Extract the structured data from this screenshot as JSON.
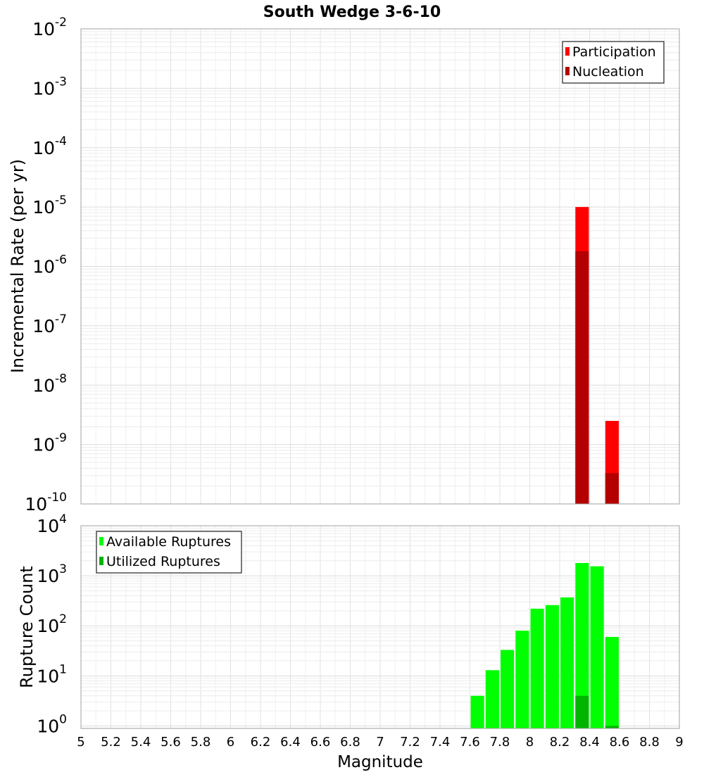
{
  "chart_data": [
    {
      "type": "bar",
      "title": "South Wedge 3-6-10",
      "xlabel": "",
      "ylabel": "Incremental Rate (per yr)",
      "yscale": "log",
      "xlim": [
        5,
        9
      ],
      "ylim_exp": [
        -10,
        -2
      ],
      "ytick_exponents": [
        "-10",
        "-9",
        "-8",
        "-7",
        "-6",
        "-5",
        "-4",
        "-3",
        "-2"
      ],
      "grid": true,
      "legend_position": "top-right",
      "bar_width": 0.09,
      "series": [
        {
          "name": "Participation",
          "color": "#ff0000",
          "x": [
            8.35,
            8.55
          ],
          "values": [
            1e-05,
            2.5e-09
          ]
        },
        {
          "name": "Nucleation",
          "color": "#b40000",
          "x": [
            8.35,
            8.55
          ],
          "values": [
            1.8e-06,
            3.3e-10
          ]
        }
      ]
    },
    {
      "type": "bar",
      "title": "",
      "xlabel": "Magnitude",
      "ylabel": "Rupture Count",
      "yscale": "log",
      "xlim": [
        5,
        9
      ],
      "ylim_exp": [
        -0.05,
        4
      ],
      "ytick_exponents": [
        "0",
        "1",
        "2",
        "3",
        "4"
      ],
      "xtick_labels": [
        "5",
        "5.2",
        "5.4",
        "5.6",
        "5.8",
        "6",
        "6.2",
        "6.4",
        "6.6",
        "6.8",
        "7",
        "7.2",
        "7.4",
        "7.6",
        "7.8",
        "8",
        "8.2",
        "8.4",
        "8.6",
        "8.8",
        "9"
      ],
      "grid": true,
      "legend_position": "top-left",
      "bar_width": 0.09,
      "series": [
        {
          "name": "Available Ruptures",
          "color": "#00ff00",
          "x": [
            7.65,
            7.75,
            7.85,
            7.95,
            8.05,
            8.15,
            8.25,
            8.35,
            8.45,
            8.55
          ],
          "values": [
            4,
            13,
            33,
            80,
            220,
            260,
            370,
            1800,
            1550,
            60
          ]
        },
        {
          "name": "Utilized Ruptures",
          "color": "#00b400",
          "x": [
            8.35,
            8.55
          ],
          "values": [
            4,
            1
          ]
        }
      ]
    }
  ]
}
